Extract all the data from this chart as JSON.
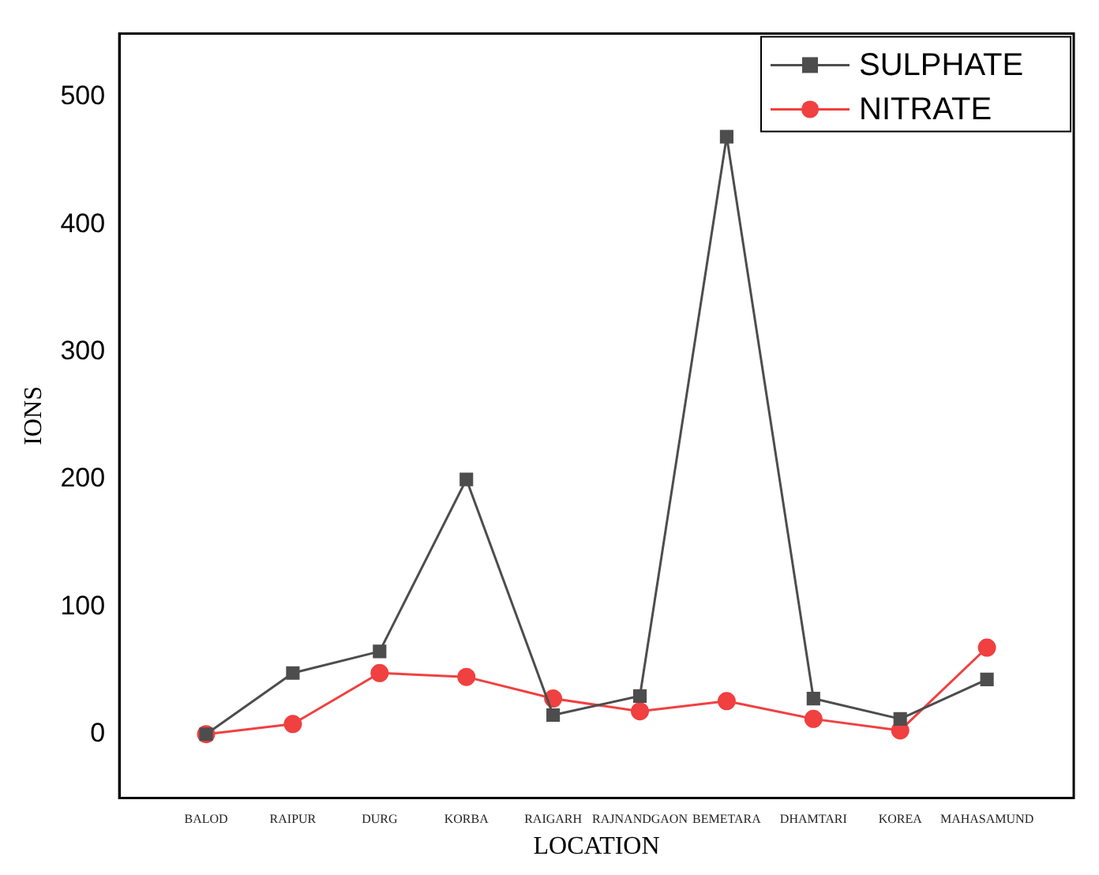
{
  "chart_data": {
    "type": "line",
    "xlabel": "LOCATION",
    "ylabel": "IONS",
    "categories": [
      "BALOD",
      "RAIPUR",
      "DURG",
      "KORBA",
      "RAIGARH",
      "RAJNANDGAON",
      "BEMETARA",
      "DHAMTARI",
      "KOREA",
      "MAHASAMUND"
    ],
    "series": [
      {
        "name": "SULPHATE",
        "color": "#4d4d4d",
        "marker": "square",
        "values": [
          0,
          48,
          65,
          200,
          15,
          30,
          469,
          28,
          12,
          43
        ]
      },
      {
        "name": "NITRATE",
        "color": "#f04040",
        "marker": "circle",
        "values": [
          0,
          8,
          48,
          45,
          28,
          18,
          26,
          12,
          3,
          68
        ]
      }
    ],
    "ylim": [
      -50,
      550
    ],
    "yticks": [
      0,
      100,
      200,
      300,
      400,
      500
    ],
    "grid": false,
    "legend": "top right",
    "line_style": "solid"
  }
}
